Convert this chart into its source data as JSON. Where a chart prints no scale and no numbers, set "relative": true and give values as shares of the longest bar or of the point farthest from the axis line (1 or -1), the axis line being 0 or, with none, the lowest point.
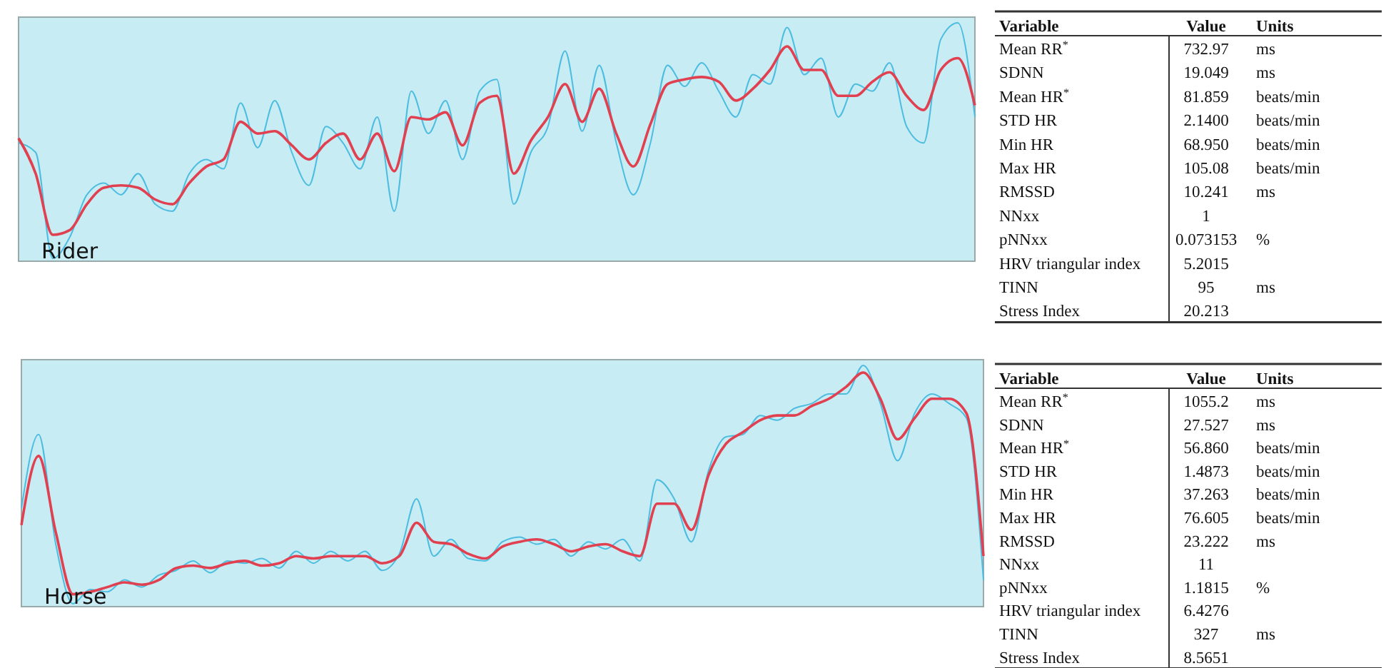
{
  "chart_data": [
    {
      "type": "line",
      "title": "Rider",
      "relative": true,
      "marker": "none",
      "line_style": "solid",
      "categories": [
        null,
        null,
        null,
        null,
        null,
        null,
        null,
        null,
        null,
        null,
        null,
        null,
        null,
        null,
        null,
        null,
        null,
        null,
        null,
        null,
        null,
        null,
        null,
        null,
        null,
        null,
        null,
        null,
        null,
        null,
        null,
        null,
        null,
        null,
        null,
        null,
        null,
        null,
        null,
        null,
        null,
        null,
        null,
        null,
        null,
        null,
        null,
        null,
        null,
        null,
        null,
        null,
        null,
        null,
        null,
        null,
        null
      ],
      "series": [
        {
          "color": "#4cbde0",
          "values": [
            0.49,
            0.45,
            0.0,
            0.09,
            0.27,
            0.32,
            0.27,
            0.36,
            0.23,
            0.2,
            0.36,
            0.42,
            0.38,
            0.66,
            0.47,
            0.67,
            0.45,
            0.31,
            0.56,
            0.49,
            0.38,
            0.6,
            0.2,
            0.71,
            0.53,
            0.67,
            0.42,
            0.71,
            0.76,
            0.23,
            0.45,
            0.56,
            0.88,
            0.54,
            0.82,
            0.49,
            0.27,
            0.49,
            0.82,
            0.73,
            0.83,
            0.71,
            0.6,
            0.78,
            0.74,
            0.98,
            0.78,
            0.85,
            0.6,
            0.74,
            0.71,
            0.83,
            0.56,
            0.49,
            0.93,
            1.0,
            0.6
          ]
        },
        {
          "color": "#e0404f",
          "values": [
            0.51,
            0.36,
            0.1,
            0.12,
            0.23,
            0.3,
            0.31,
            0.3,
            0.25,
            0.23,
            0.32,
            0.39,
            0.42,
            0.58,
            0.53,
            0.54,
            0.48,
            0.42,
            0.49,
            0.53,
            0.42,
            0.53,
            0.37,
            0.6,
            0.59,
            0.62,
            0.48,
            0.66,
            0.69,
            0.36,
            0.5,
            0.6,
            0.74,
            0.58,
            0.72,
            0.53,
            0.39,
            0.57,
            0.74,
            0.76,
            0.77,
            0.75,
            0.67,
            0.72,
            0.8,
            0.9,
            0.8,
            0.8,
            0.69,
            0.69,
            0.75,
            0.79,
            0.69,
            0.63,
            0.8,
            0.85,
            0.65
          ]
        }
      ]
    },
    {
      "type": "other",
      "categories": [
        "Mean RR$^{*}$",
        "SDNN",
        "Mean HR$^{*}$",
        "STD HR",
        "Min HR",
        "Max HR",
        "RMSSD",
        "NNxx",
        "pNNxx",
        "HRV triangular index",
        "TINN",
        "Stress Index"
      ],
      "value_labels": [
        "732.97",
        "19.049",
        "81.859",
        "2.1400",
        "68.950",
        "105.08",
        "10.241",
        "1",
        "0.073153",
        "5.2015",
        "95",
        "20.213"
      ],
      "annotations": [
        "Variable",
        "Value",
        "Units",
        {
          "text": "ms",
          "y": "Mean RR$^{*}$"
        },
        {
          "text": "ms",
          "y": "SDNN"
        },
        {
          "text": "beats/min",
          "y": "Mean HR$^{*}$"
        },
        {
          "text": "beats/min",
          "y": "STD HR"
        },
        {
          "text": "beats/min",
          "y": "Min HR"
        },
        {
          "text": "beats/min",
          "y": "Max HR"
        },
        {
          "text": "ms",
          "y": "RMSSD"
        },
        {
          "text": "%",
          "y": "pNNxx"
        },
        {
          "text": "ms",
          "y": "TINN"
        }
      ]
    },
    {
      "type": "line",
      "title": "Horse",
      "relative": true,
      "marker": "none",
      "line_style": "solid",
      "categories": [
        null,
        null,
        null,
        null,
        null,
        null,
        null,
        null,
        null,
        null,
        null,
        null,
        null,
        null,
        null,
        null,
        null,
        null,
        null,
        null,
        null,
        null,
        null,
        null,
        null,
        null,
        null,
        null,
        null,
        null,
        null,
        null,
        null,
        null,
        null,
        null,
        null,
        null,
        null,
        null,
        null,
        null,
        null,
        null,
        null,
        null,
        null,
        null,
        null,
        null,
        null,
        null,
        null,
        null,
        null,
        null,
        null
      ],
      "series": [
        {
          "color": "#4cbde0",
          "values": [
            0.4,
            0.71,
            0.25,
            0.0,
            0.06,
            0.05,
            0.1,
            0.07,
            0.12,
            0.14,
            0.18,
            0.13,
            0.18,
            0.17,
            0.19,
            0.15,
            0.22,
            0.17,
            0.22,
            0.18,
            0.22,
            0.14,
            0.21,
            0.44,
            0.2,
            0.27,
            0.19,
            0.18,
            0.26,
            0.28,
            0.25,
            0.27,
            0.2,
            0.26,
            0.23,
            0.27,
            0.18,
            0.52,
            0.44,
            0.26,
            0.56,
            0.7,
            0.71,
            0.79,
            0.77,
            0.82,
            0.84,
            0.88,
            0.88,
            1.0,
            0.84,
            0.6,
            0.8,
            0.88,
            0.84,
            0.78,
            0.1
          ]
        },
        {
          "color": "#e0404f",
          "values": [
            0.33,
            0.62,
            0.3,
            0.04,
            0.05,
            0.07,
            0.09,
            0.08,
            0.1,
            0.15,
            0.16,
            0.15,
            0.17,
            0.18,
            0.16,
            0.17,
            0.2,
            0.19,
            0.2,
            0.2,
            0.2,
            0.17,
            0.2,
            0.34,
            0.26,
            0.25,
            0.21,
            0.19,
            0.24,
            0.26,
            0.27,
            0.25,
            0.22,
            0.24,
            0.25,
            0.22,
            0.2,
            0.42,
            0.42,
            0.31,
            0.54,
            0.67,
            0.72,
            0.77,
            0.79,
            0.79,
            0.83,
            0.86,
            0.91,
            0.97,
            0.86,
            0.69,
            0.78,
            0.86,
            0.86,
            0.8,
            0.2
          ]
        }
      ]
    },
    {
      "type": "other",
      "categories": [
        "Mean RR$^{*}$",
        "SDNN",
        "Mean HR$^{*}$",
        "STD HR",
        "Min HR",
        "Max HR",
        "RMSSD",
        "NNxx",
        "pNNxx",
        "HRV triangular index",
        "TINN",
        "Stress Index"
      ],
      "value_labels": [
        "1055.2",
        "27.527",
        "56.860",
        "1.4873",
        "37.263",
        "76.605",
        "23.222",
        "11",
        "1.1815",
        "6.4276",
        "327",
        "8.5651"
      ],
      "annotations": [
        "Variable",
        "Value",
        "Units",
        {
          "text": "ms",
          "y": "Mean RR$^{*}$"
        },
        {
          "text": "ms",
          "y": "SDNN"
        },
        {
          "text": "beats/min",
          "y": "Mean HR$^{*}$"
        },
        {
          "text": "beats/min",
          "y": "STD HR"
        },
        {
          "text": "beats/min",
          "y": "Min HR"
        },
        {
          "text": "beats/min",
          "y": "Max HR"
        },
        {
          "text": "ms",
          "y": "RMSSD"
        },
        {
          "text": "%",
          "y": "pNNxx"
        },
        {
          "text": "ms",
          "y": "TINN"
        }
      ]
    }
  ]
}
